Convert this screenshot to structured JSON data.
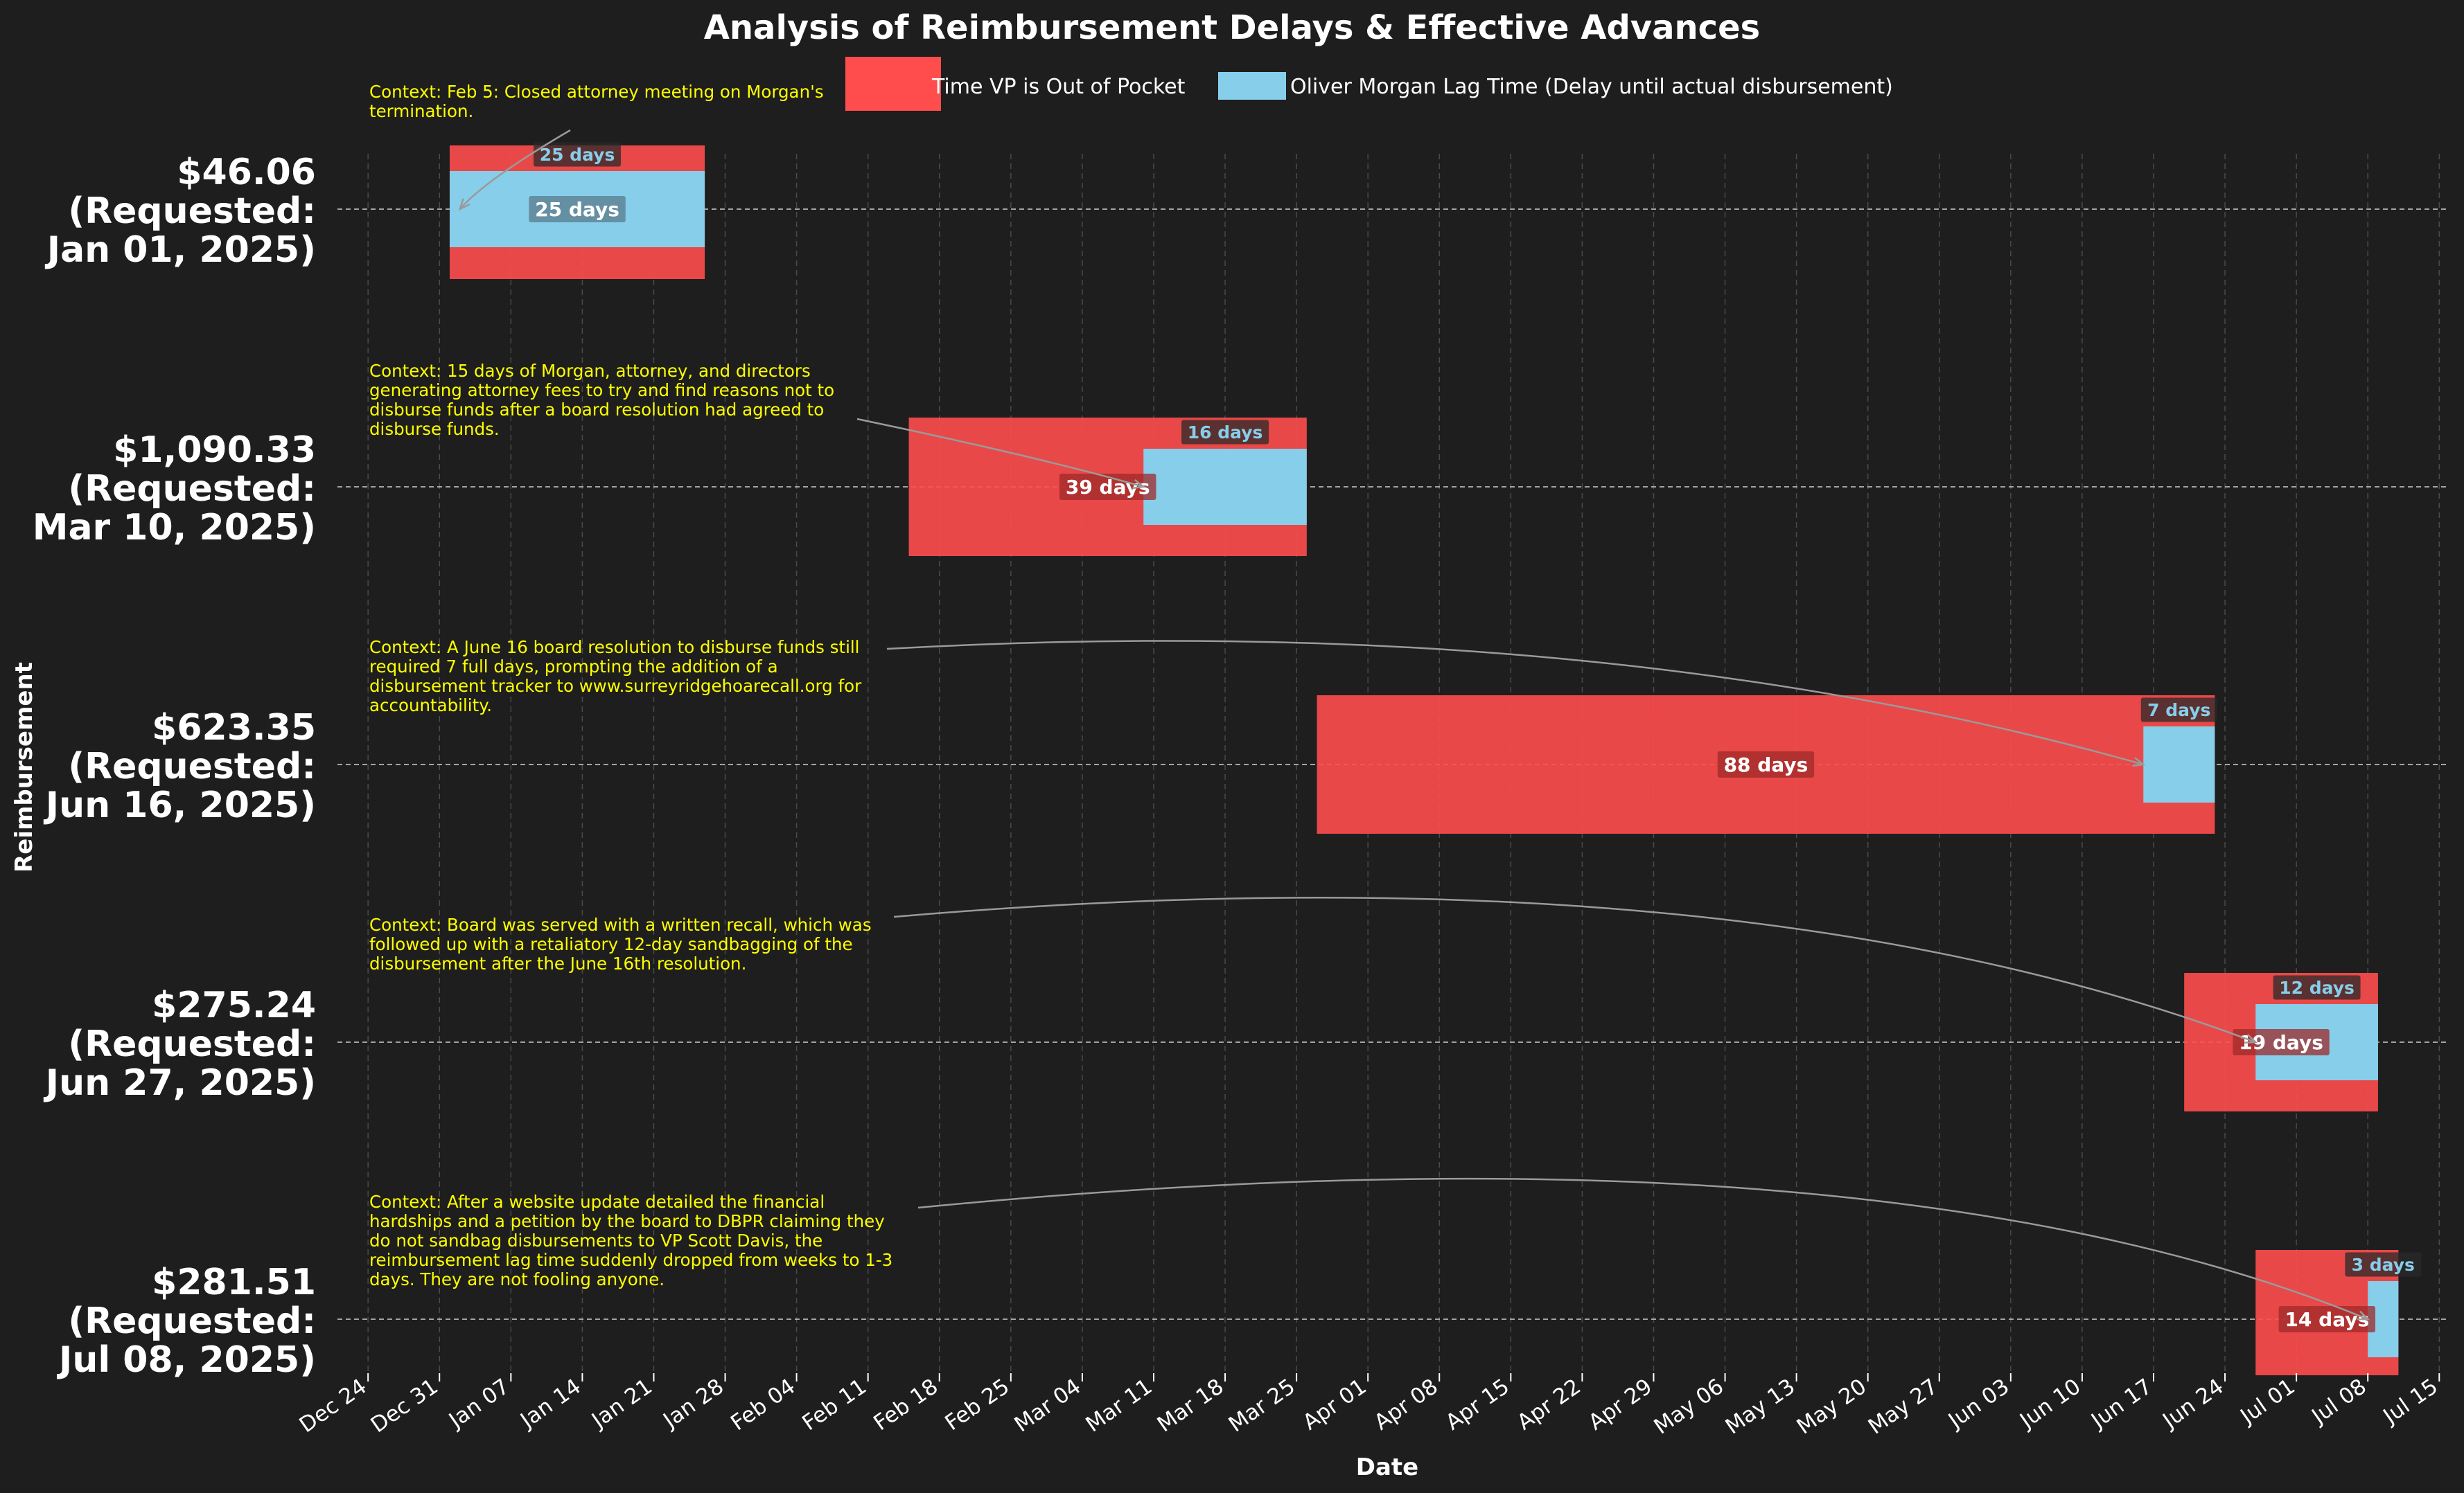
{
  "chart_data": {
    "type": "bar",
    "orientation": "horizontal-gantt",
    "title": "Analysis of Reimbursement Delays & Effective Advances",
    "xlabel": "Date",
    "ylabel": "Reimbursement",
    "xlim": [
      "2024-12-21",
      "2025-07-16"
    ],
    "grid": true,
    "legend_position": "top",
    "series": [
      {
        "name": "Time VP is Out of Pocket",
        "color": "#ff4c4c"
      },
      {
        "name": "Oliver Morgan Lag Time (Delay until actual disbursement)",
        "color": "#87ceeb"
      }
    ],
    "x_ticks": [
      "Dec 24",
      "Dec 31",
      "Jan 07",
      "Jan 14",
      "Jan 21",
      "Jan 28",
      "Feb 04",
      "Feb 11",
      "Feb 18",
      "Feb 25",
      "Mar 04",
      "Mar 11",
      "Mar 18",
      "Mar 25",
      "Apr 01",
      "Apr 08",
      "Apr 15",
      "Apr 22",
      "Apr 29",
      "May 06",
      "May 13",
      "May 20",
      "May 27",
      "Jun 03",
      "Jun 10",
      "Jun 17",
      "Jun 24",
      "Jul 01",
      "Jul 08",
      "Jul 15"
    ],
    "x_tick_dates": [
      "2024-12-24",
      "2024-12-31",
      "2025-01-07",
      "2025-01-14",
      "2025-01-21",
      "2025-01-28",
      "2025-02-04",
      "2025-02-11",
      "2025-02-18",
      "2025-02-25",
      "2025-03-04",
      "2025-03-11",
      "2025-03-18",
      "2025-03-25",
      "2025-04-01",
      "2025-04-08",
      "2025-04-15",
      "2025-04-22",
      "2025-04-29",
      "2025-05-06",
      "2025-05-13",
      "2025-05-20",
      "2025-05-27",
      "2025-06-03",
      "2025-06-10",
      "2025-06-17",
      "2025-06-24",
      "2025-07-01",
      "2025-07-08",
      "2025-07-15"
    ],
    "rows": [
      {
        "label": [
          "$46.06",
          "(Requested:",
          "Jan 01, 2025)"
        ],
        "out_of_pocket": {
          "start": "2025-01-01",
          "end": "2025-01-26",
          "days_label": "25 days"
        },
        "lag": {
          "start": "2025-01-01",
          "end": "2025-01-26",
          "days_label": "25 days"
        },
        "context": [
          "Context: Feb 5: Closed attorney meeting on Morgan's",
          "termination."
        ],
        "arrow_target_date": "2025-01-02"
      },
      {
        "label": [
          "$1,090.33",
          "(Requested:",
          "Mar 10, 2025)"
        ],
        "out_of_pocket": {
          "start": "2025-02-15",
          "end": "2025-03-26",
          "days_label": "39 days"
        },
        "lag": {
          "start": "2025-03-10",
          "end": "2025-03-26",
          "days_label": "16 days"
        },
        "context": [
          "Context: 15 days of Morgan, attorney, and directors",
          "generating attorney fees to try and find reasons not to",
          "disburse funds after a board resolution had agreed to",
          "disburse funds."
        ],
        "arrow_target_date": "2025-03-10"
      },
      {
        "label": [
          "$623.35",
          "(Requested:",
          "Jun 16, 2025)"
        ],
        "out_of_pocket": {
          "start": "2025-03-27",
          "end": "2025-06-23",
          "days_label": "88 days"
        },
        "lag": {
          "start": "2025-06-16",
          "end": "2025-06-23",
          "days_label": "7 days"
        },
        "context": [
          "Context: A June 16 board resolution to disburse funds still",
          "required 7 full days, prompting the addition of a",
          "disbursement tracker to www.surreyridgehoarecall.org for",
          "accountability."
        ],
        "arrow_target_date": "2025-06-16"
      },
      {
        "label": [
          "$275.24",
          "(Requested:",
          "Jun 27, 2025)"
        ],
        "out_of_pocket": {
          "start": "2025-06-20",
          "end": "2025-07-09",
          "days_label": "19 days"
        },
        "lag": {
          "start": "2025-06-27",
          "end": "2025-07-09",
          "days_label": "12 days"
        },
        "context": [
          "Context: Board was served with a written recall, which was",
          "followed up with a retaliatory 12-day sandbagging of the",
          "disbursement after the June 16th resolution."
        ],
        "arrow_target_date": "2025-06-27"
      },
      {
        "label": [
          "$281.51",
          "(Requested:",
          "Jul 08, 2025)"
        ],
        "out_of_pocket": {
          "start": "2025-06-27",
          "end": "2025-07-11",
          "days_label": "14 days"
        },
        "lag": {
          "start": "2025-07-08",
          "end": "2025-07-11",
          "days_label": "3 days"
        },
        "context": [
          "Context: After a website update detailed the financial",
          "hardships and a petition by the board to DBPR claiming they",
          "do not sandbag disbursements to VP Scott Davis, the",
          "reimbursement lag time suddenly dropped from weeks to 1-3",
          "days. They are not fooling anyone."
        ],
        "arrow_target_date": "2025-07-08"
      }
    ]
  }
}
